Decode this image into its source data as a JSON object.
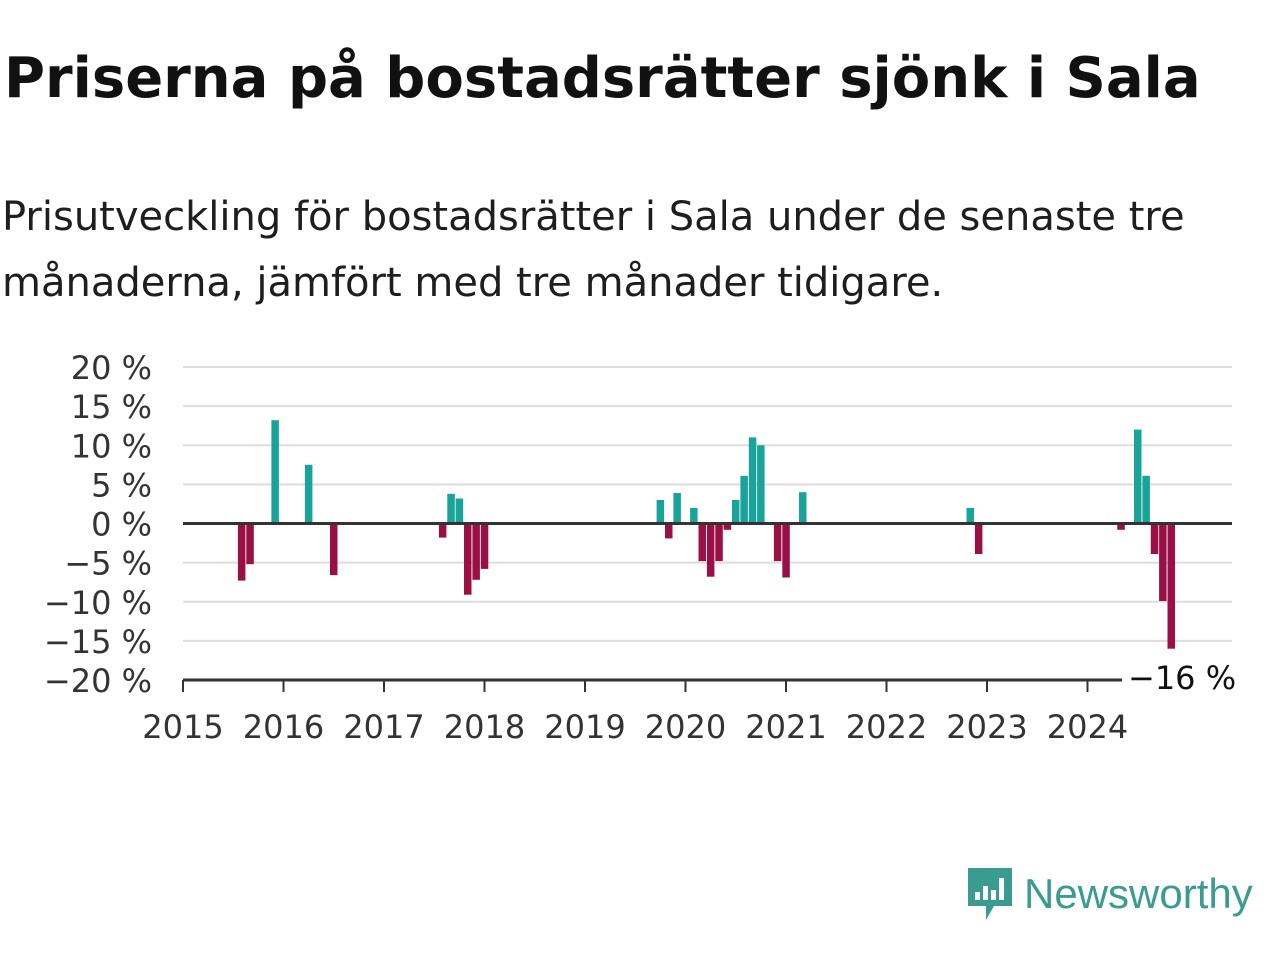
{
  "title": "Priserna på bostadsrätter sjönk i Sala",
  "subtitle": "Prisutveckling för bostadsrätter i Sala under de senaste tre månaderna, jämfört med tre månader tidigare.",
  "brand": {
    "name": "Newsworthy",
    "icon": "newsworthy-logo-icon",
    "color": "#3a9c91"
  },
  "colors": {
    "positive": "#1aa39a",
    "negative": "#9b0f47",
    "grid": "#dddddd",
    "axis": "#333333"
  },
  "chart_data": {
    "type": "bar",
    "xlabel": "",
    "ylabel": "",
    "ylim": [
      -20,
      20
    ],
    "xlim": [
      "2015-01",
      "2025-01"
    ],
    "grid": true,
    "y_ticks": [
      20,
      15,
      10,
      5,
      0,
      -5,
      -10,
      -15,
      -20
    ],
    "y_tick_labels": [
      "20 %",
      "15 %",
      "10 %",
      "5 %",
      "0 %",
      "−5 %",
      "−10 %",
      "−15 %",
      "−20 %"
    ],
    "x_ticks": [
      "2015",
      "2016",
      "2017",
      "2018",
      "2019",
      "2020",
      "2021",
      "2022",
      "2023",
      "2024"
    ],
    "last_value_label": "−16 %",
    "series": [
      {
        "points": [
          {
            "x": "2015-08",
            "y": -7.3
          },
          {
            "x": "2015-09",
            "y": -5.2
          },
          {
            "x": "2015-12",
            "y": 13.2
          },
          {
            "x": "2016-04",
            "y": 7.5
          },
          {
            "x": "2016-07",
            "y": -6.6
          },
          {
            "x": "2017-08",
            "y": -1.8
          },
          {
            "x": "2017-09",
            "y": 3.8
          },
          {
            "x": "2017-10",
            "y": 3.2
          },
          {
            "x": "2017-11",
            "y": -9.1
          },
          {
            "x": "2017-12",
            "y": -7.2
          },
          {
            "x": "2018-01",
            "y": -5.8
          },
          {
            "x": "2019-10",
            "y": 3.0
          },
          {
            "x": "2019-11",
            "y": -1.9
          },
          {
            "x": "2019-12",
            "y": 3.9
          },
          {
            "x": "2020-02",
            "y": 2.0
          },
          {
            "x": "2020-03",
            "y": -4.8
          },
          {
            "x": "2020-04",
            "y": -6.8
          },
          {
            "x": "2020-05",
            "y": -4.8
          },
          {
            "x": "2020-06",
            "y": -0.8
          },
          {
            "x": "2020-07",
            "y": 3.0
          },
          {
            "x": "2020-08",
            "y": 6.1
          },
          {
            "x": "2020-09",
            "y": 11.0
          },
          {
            "x": "2020-10",
            "y": 10.0
          },
          {
            "x": "2020-12",
            "y": -4.8
          },
          {
            "x": "2021-01",
            "y": -6.9
          },
          {
            "x": "2021-03",
            "y": 4.0
          },
          {
            "x": "2022-11",
            "y": 2.0
          },
          {
            "x": "2022-12",
            "y": -3.9
          },
          {
            "x": "2024-05",
            "y": -0.8
          },
          {
            "x": "2024-07",
            "y": 12.0
          },
          {
            "x": "2024-08",
            "y": 6.1
          },
          {
            "x": "2024-09",
            "y": -3.9
          },
          {
            "x": "2024-10",
            "y": -9.9
          },
          {
            "x": "2024-11",
            "y": -16.0
          }
        ]
      }
    ]
  }
}
